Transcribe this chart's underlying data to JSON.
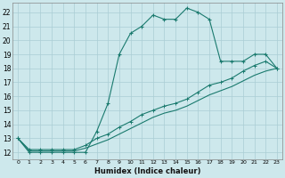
{
  "xlabel": "Humidex (Indice chaleur)",
  "bg_color": "#cde8ec",
  "grid_color": "#aacdd4",
  "line_color": "#1a7a6e",
  "xlim": [
    -0.5,
    23.5
  ],
  "ylim": [
    11.5,
    22.7
  ],
  "xticks": [
    0,
    1,
    2,
    3,
    4,
    5,
    6,
    7,
    8,
    9,
    10,
    11,
    12,
    13,
    14,
    15,
    16,
    17,
    18,
    19,
    20,
    21,
    22,
    23
  ],
  "yticks": [
    12,
    13,
    14,
    15,
    16,
    17,
    18,
    19,
    20,
    21,
    22
  ],
  "line1_x": [
    0,
    1,
    2,
    3,
    4,
    5,
    6,
    7,
    8,
    9,
    10,
    11,
    12,
    13,
    14,
    15,
    16,
    17,
    18,
    19,
    20,
    21,
    22,
    23
  ],
  "line1_y": [
    13,
    12,
    12,
    12,
    12,
    12,
    12,
    13.5,
    15.5,
    19,
    20.5,
    21,
    21.8,
    21.5,
    21.5,
    22.3,
    22,
    21.5,
    18.5,
    18.5,
    18.5,
    19,
    19,
    18
  ],
  "line2_x": [
    0,
    1,
    2,
    3,
    4,
    5,
    6,
    7,
    8,
    9,
    10,
    11,
    12,
    13,
    14,
    15,
    16,
    17,
    18,
    19,
    20,
    21,
    22,
    23
  ],
  "line2_y": [
    13,
    12.2,
    12.2,
    12.2,
    12.2,
    12.2,
    12.5,
    13.0,
    13.3,
    13.8,
    14.2,
    14.7,
    15.0,
    15.3,
    15.5,
    15.8,
    16.3,
    16.8,
    17.0,
    17.3,
    17.8,
    18.2,
    18.5,
    18.0
  ],
  "line3_x": [
    0,
    1,
    2,
    3,
    4,
    5,
    6,
    7,
    8,
    9,
    10,
    11,
    12,
    13,
    14,
    15,
    16,
    17,
    18,
    19,
    20,
    21,
    22,
    23
  ],
  "line3_y": [
    13,
    12.1,
    12.1,
    12.1,
    12.1,
    12.1,
    12.3,
    12.6,
    12.9,
    13.3,
    13.7,
    14.1,
    14.5,
    14.8,
    15.0,
    15.3,
    15.7,
    16.1,
    16.4,
    16.7,
    17.1,
    17.5,
    17.8,
    18.0
  ]
}
